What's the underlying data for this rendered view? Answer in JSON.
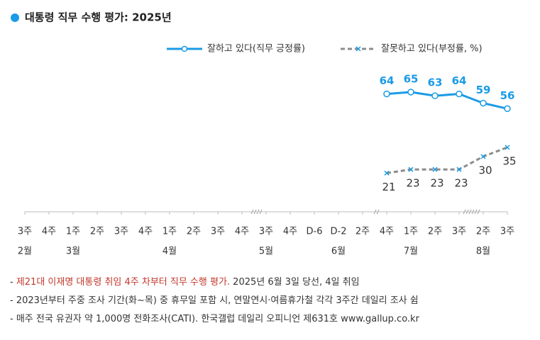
{
  "chart_data": {
    "type": "line",
    "title": "대통령 직무 수행 평가: 2025년",
    "categories": [
      "3주",
      "4주",
      "1주",
      "2주",
      "3주",
      "4주",
      "1주",
      "2주",
      "3주",
      "4주",
      "3주",
      "4주",
      "D-6",
      "D-2",
      "2주",
      "4주",
      "1주",
      "2주",
      "3주",
      "2주",
      "3주"
    ],
    "months": [
      "2월",
      null,
      "3월",
      null,
      null,
      null,
      "4월",
      null,
      null,
      null,
      "5월",
      null,
      null,
      "6월",
      null,
      null,
      "7월",
      null,
      null,
      "8월",
      null
    ],
    "series": [
      {
        "name": "잘하고 있다(직무 긍정률)",
        "color": "#1a9be6",
        "dashed": false,
        "marker": "circle",
        "values": [
          null,
          null,
          null,
          null,
          null,
          null,
          null,
          null,
          null,
          null,
          null,
          null,
          null,
          null,
          null,
          64,
          65,
          63,
          64,
          59,
          56
        ]
      },
      {
        "name": "잘못하고 있다(부정률, %)",
        "color": "#8c8c8c",
        "dashed": true,
        "marker": "x",
        "values": [
          null,
          null,
          null,
          null,
          null,
          null,
          null,
          null,
          null,
          null,
          null,
          null,
          null,
          null,
          null,
          21,
          23,
          23,
          23,
          30,
          35
        ]
      }
    ],
    "ylim": [
      0,
      100
    ]
  },
  "notes": [
    [
      "- ",
      "제21대 이재명 대통령 취임 4주 차부터 직무 수행 평가.",
      " 2025년 6월 3일 당선, 4일 취임"
    ],
    [
      "- 2023년부터 주중 조사 기간(화~목) 중 휴무일 포함 시, 연말연시·여름휴가철 각각 3주간 데일리 조사 쉼"
    ],
    [
      "- 매주 전국 유권자 약 1,000명 전화조사(CATI). 한국갤럽 데일리 오피니언 제631호 www.gallup.co.kr"
    ]
  ]
}
